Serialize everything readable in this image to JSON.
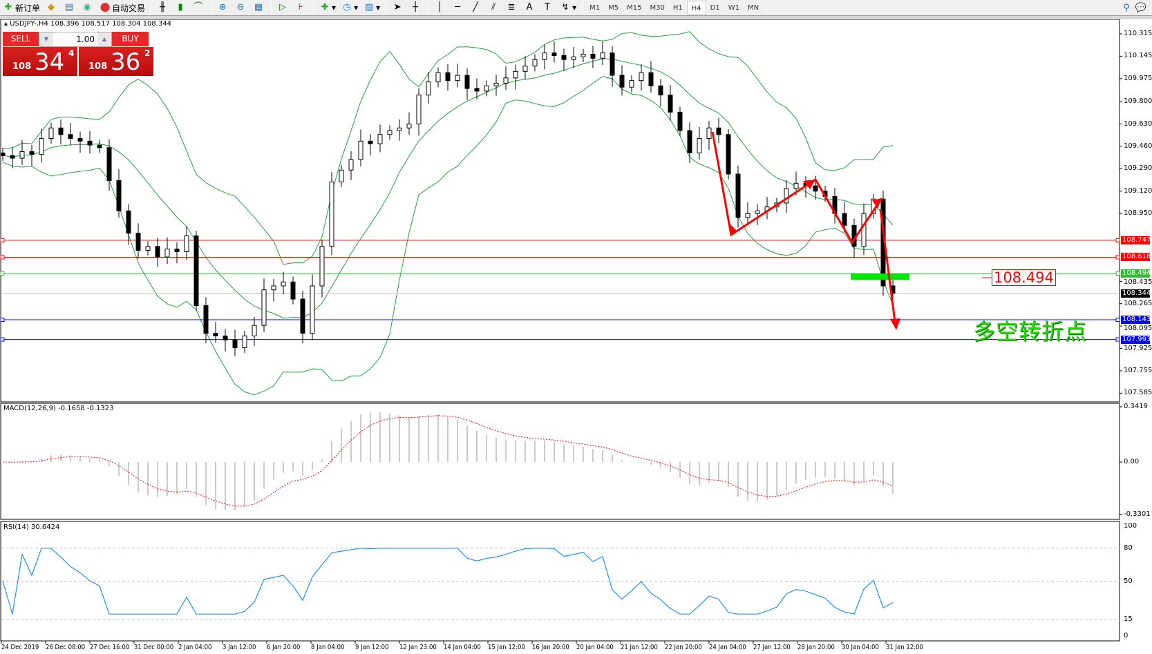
{
  "toolbar": {
    "new_order": "新订单",
    "auto_trading": "自动交易",
    "timeframes": [
      "M1",
      "M5",
      "M15",
      "M30",
      "H1",
      "H4",
      "D1",
      "W1",
      "MN"
    ],
    "selected_timeframe": "H4",
    "icons": [
      "new-order-icon",
      "market-watch-icon",
      "data-window-icon",
      "signals-icon",
      "auto-trading-icon",
      "bar-chart-icon",
      "candlestick-icon",
      "line-chart-icon",
      "zoom-in-icon",
      "zoom-out-icon",
      "tile-windows-icon",
      "auto-scroll-icon",
      "chart-shift-icon",
      "indicators-icon",
      "periods-icon",
      "templates-icon",
      "cursor-icon",
      "crosshair-icon",
      "vertical-line-icon",
      "horizontal-line-icon",
      "trendline-icon",
      "fibonacci-icon",
      "fibo-fan-icon",
      "text-icon",
      "text-label-icon",
      "arrows-icon",
      "search-icon",
      "community-icon"
    ]
  },
  "chart": {
    "header": "USDJPY-,H4  108.396 108.517 108.304 108.344",
    "trade_panel": {
      "sell": "SELL",
      "buy": "BUY",
      "lot": "1.00",
      "sell_price": {
        "small": "108",
        "big": "34",
        "pip": "4"
      },
      "buy_price": {
        "small": "108",
        "big": "36",
        "pip": "2"
      }
    },
    "annotation_text": "多空转折点",
    "annotation_price": "108.494",
    "colors": {
      "bull": "#ffffff",
      "bear": "#000000",
      "bands": "#20a040",
      "arrow": "#ff0000",
      "highlight": "#00e600"
    }
  },
  "chart_data": [
    {
      "type": "candlestick",
      "symbol": "USDJPY-",
      "timeframe": "H4",
      "ylim": [
        107.585,
        110.4
      ],
      "price_ticks": [
        "110.315",
        "110.145",
        "109.975",
        "109.800",
        "109.630",
        "109.460",
        "109.290",
        "109.120",
        "108.950",
        "108.435",
        "108.265",
        "108.095",
        "107.925",
        "107.755",
        "107.585"
      ],
      "x_ticks": [
        "24 Dec 2019",
        "26 Dec 08:00",
        "27 Dec 16:00",
        "31 Dec 00:00",
        "2 Jan 04:00",
        "3 Jan 12:00",
        "6 Jan 20:00",
        "8 Jan 04:00",
        "9 Jan 12:00",
        "12 Jan 23:00",
        "14 Jan 04:00",
        "15 Jan 12:00",
        "16 Jan 20:00",
        "20 Jan 04:00",
        "21 Jan 12:00",
        "22 Jan 20:00",
        "24 Jan 04:00",
        "27 Jan 12:00",
        "28 Jan 20:00",
        "30 Jan 04:00",
        "31 Jan 12:00"
      ],
      "close": [
        109.39,
        109.37,
        109.42,
        109.4,
        109.52,
        109.6,
        109.55,
        109.52,
        109.5,
        109.47,
        109.45,
        109.2,
        108.97,
        108.8,
        108.67,
        108.7,
        108.62,
        108.68,
        108.66,
        108.78,
        108.25,
        108.04,
        108.02,
        107.99,
        107.93,
        108.02,
        108.1,
        108.37,
        108.4,
        108.43,
        108.3,
        108.04,
        108.4,
        108.7,
        109.19,
        109.28,
        109.36,
        109.5,
        109.48,
        109.55,
        109.58,
        109.6,
        109.63,
        109.85,
        109.95,
        110.02,
        109.96,
        110.0,
        109.9,
        109.88,
        109.92,
        109.94,
        109.98,
        110.03,
        110.07,
        110.12,
        110.17,
        110.15,
        110.12,
        110.14,
        110.16,
        110.13,
        110.17,
        110.0,
        109.91,
        109.96,
        110.02,
        109.92,
        109.85,
        109.72,
        109.58,
        109.41,
        109.52,
        109.6,
        109.55,
        109.25,
        108.92,
        108.95,
        108.97,
        109.0,
        109.03,
        109.14,
        109.18,
        109.16,
        109.12,
        109.08,
        108.95,
        108.86,
        108.7,
        108.95,
        109.06,
        108.4,
        108.344
      ],
      "hlines": [
        {
          "price": "108.747",
          "color": "#ff0000"
        },
        {
          "price": "108.618",
          "color": "#ff0000"
        },
        {
          "price": "108.494",
          "color": "#33bb33"
        },
        {
          "price": "108.344",
          "color": "#000000",
          "line": "#c0c0c0"
        },
        {
          "price": "108.143",
          "color": "#0000ff"
        },
        {
          "price": "107.993",
          "color": "#0000ff"
        }
      ]
    },
    {
      "type": "bar+line",
      "name": "MACD(12,26,9) -0.1658 -0.1323",
      "ticks": [
        "0.3419",
        "0.00",
        "-0.3301"
      ],
      "ylim": [
        -0.3301,
        0.3419
      ]
    },
    {
      "type": "line",
      "name": "RSI(14) 30.6424",
      "ticks": [
        "100",
        "80",
        "50",
        "15",
        "0"
      ],
      "levels": [
        80,
        50,
        15
      ],
      "ylim": [
        0,
        100
      ]
    }
  ]
}
